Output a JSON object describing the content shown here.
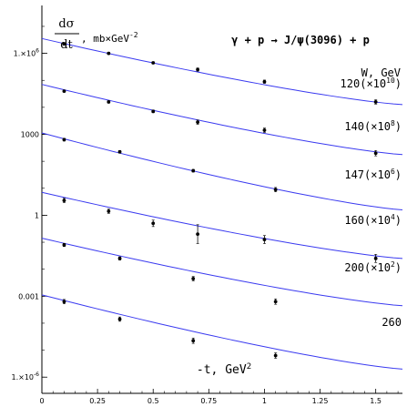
{
  "chart_data": {
    "type": "scatter",
    "title": "γ + p → J/ψ(3096) + p",
    "ylabel_num": "dσ",
    "ylabel_den": "dt",
    "ylabel_unit": ", mb×GeV",
    "ylabel_exp": "-2",
    "xlabel": "-t, GeV",
    "xlabel_exp": "2",
    "legend_header": "W, GeV",
    "y_log": true,
    "xlim": [
      0,
      1.62
    ],
    "ylim_log10": [
      -6.6,
      7.1
    ],
    "x_ticks": [
      {
        "v": 0,
        "label": "0"
      },
      {
        "v": 0.25,
        "label": "0.25"
      },
      {
        "v": 0.5,
        "label": "0.5"
      },
      {
        "v": 0.75,
        "label": "0.75"
      },
      {
        "v": 1,
        "label": "1"
      },
      {
        "v": 1.25,
        "label": "1.25"
      },
      {
        "v": 1.5,
        "label": "1.5"
      }
    ],
    "y_ticks": [
      {
        "log": 6,
        "label": "1.×10",
        "sup": "6"
      },
      {
        "log": 3,
        "label": "1000",
        "sup": ""
      },
      {
        "log": 0,
        "label": "1",
        "sup": ""
      },
      {
        "log": -3,
        "label": "0.001",
        "sup": ""
      },
      {
        "log": -6,
        "label": "1.×10",
        "sup": "-6"
      }
    ],
    "line_color": "#3a3af0",
    "point_color": "#000000",
    "series": [
      {
        "name": "120(×10",
        "exp": "10",
        "suffix": ")",
        "curve_x": [
          0,
          1.62
        ],
        "curve_log10y": [
          6.55,
          4.1
        ],
        "points": [
          {
            "x": 0.1,
            "log10y": 6.35,
            "err": 0.04
          },
          {
            "x": 0.3,
            "log10y": 6.0,
            "err": 0.04
          },
          {
            "x": 0.5,
            "log10y": 5.65,
            "err": 0.04
          },
          {
            "x": 0.7,
            "log10y": 5.4,
            "err": 0.06
          },
          {
            "x": 1.0,
            "log10y": 4.95,
            "err": 0.06
          },
          {
            "x": 1.5,
            "log10y": 4.2,
            "err": 0.08
          }
        ]
      },
      {
        "name": "140(×10",
        "exp": "8",
        "suffix": ")",
        "curve_x": [
          0,
          1.62
        ],
        "curve_log10y": [
          4.85,
          2.25
        ],
        "points": [
          {
            "x": 0.1,
            "log10y": 4.6,
            "err": 0.04
          },
          {
            "x": 0.3,
            "log10y": 4.2,
            "err": 0.04
          },
          {
            "x": 0.5,
            "log10y": 3.85,
            "err": 0.05
          },
          {
            "x": 0.7,
            "log10y": 3.45,
            "err": 0.08
          },
          {
            "x": 1.0,
            "log10y": 3.15,
            "err": 0.08
          },
          {
            "x": 1.5,
            "log10y": 2.3,
            "err": 0.1
          }
        ]
      },
      {
        "name": "147(×10",
        "exp": "6",
        "suffix": ")",
        "curve_x": [
          0,
          1.62
        ],
        "curve_log10y": [
          3.05,
          0.2
        ],
        "points": [
          {
            "x": 0.1,
            "log10y": 2.8,
            "err": 0.05
          },
          {
            "x": 0.35,
            "log10y": 2.35,
            "err": 0.05
          },
          {
            "x": 0.68,
            "log10y": 1.65,
            "err": 0.05
          },
          {
            "x": 1.05,
            "log10y": 0.95,
            "err": 0.08
          }
        ]
      },
      {
        "name": "160(×10",
        "exp": "4",
        "suffix": ")",
        "curve_x": [
          0,
          1.62
        ],
        "curve_log10y": [
          0.85,
          -1.6
        ],
        "points": [
          {
            "x": 0.1,
            "log10y": 0.55,
            "err": 0.08
          },
          {
            "x": 0.3,
            "log10y": 0.15,
            "err": 0.08
          },
          {
            "x": 0.5,
            "log10y": -0.3,
            "err": 0.12
          },
          {
            "x": 0.7,
            "log10y": -0.7,
            "err": 0.35
          },
          {
            "x": 1.0,
            "log10y": -0.9,
            "err": 0.15
          },
          {
            "x": 1.5,
            "log10y": -1.6,
            "err": 0.15
          }
        ]
      },
      {
        "name": "200(×10",
        "exp": "2",
        "suffix": ")",
        "curve_x": [
          0,
          1.62
        ],
        "curve_log10y": [
          -0.85,
          -3.35
        ],
        "points": [
          {
            "x": 0.1,
            "log10y": -1.1,
            "err": 0.06
          },
          {
            "x": 0.35,
            "log10y": -1.6,
            "err": 0.06
          },
          {
            "x": 0.68,
            "log10y": -2.35,
            "err": 0.08
          },
          {
            "x": 1.05,
            "log10y": -3.2,
            "err": 0.1
          }
        ]
      },
      {
        "name": "260",
        "exp": "",
        "suffix": "",
        "curve_x": [
          0,
          1.62
        ],
        "curve_log10y": [
          -2.95,
          -5.7
        ],
        "points": [
          {
            "x": 0.1,
            "log10y": -3.2,
            "err": 0.08
          },
          {
            "x": 0.35,
            "log10y": -3.85,
            "err": 0.08
          },
          {
            "x": 0.68,
            "log10y": -4.65,
            "err": 0.1
          },
          {
            "x": 1.05,
            "log10y": -5.2,
            "err": 0.1
          }
        ]
      }
    ]
  }
}
